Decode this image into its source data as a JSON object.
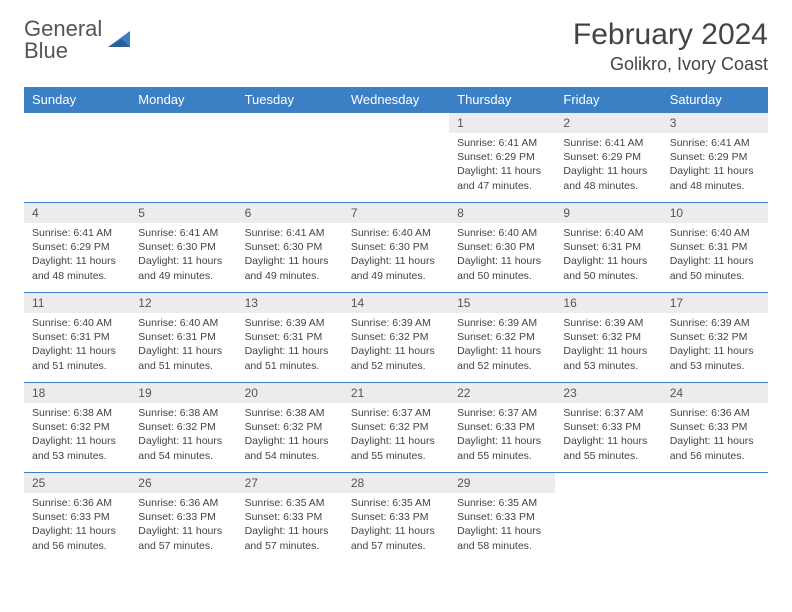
{
  "logo": {
    "line1": "General",
    "line2": "Blue"
  },
  "title": "February 2024",
  "location": "Golikro, Ivory Coast",
  "colors": {
    "header_bg": "#3b7fc4",
    "header_text": "#ffffff",
    "daynum_bg": "#ececec",
    "text": "#444444",
    "row_border": "#3b7fc4",
    "page_bg": "#ffffff"
  },
  "typography": {
    "title_fontsize": 30,
    "location_fontsize": 18,
    "dayheader_fontsize": 13,
    "daynum_fontsize": 12,
    "content_fontsize": 10.5
  },
  "day_headers": [
    "Sunday",
    "Monday",
    "Tuesday",
    "Wednesday",
    "Thursday",
    "Friday",
    "Saturday"
  ],
  "weeks": [
    [
      null,
      null,
      null,
      null,
      {
        "n": "1",
        "sr": "6:41 AM",
        "ss": "6:29 PM",
        "dl": "11 hours and 47 minutes."
      },
      {
        "n": "2",
        "sr": "6:41 AM",
        "ss": "6:29 PM",
        "dl": "11 hours and 48 minutes."
      },
      {
        "n": "3",
        "sr": "6:41 AM",
        "ss": "6:29 PM",
        "dl": "11 hours and 48 minutes."
      }
    ],
    [
      {
        "n": "4",
        "sr": "6:41 AM",
        "ss": "6:29 PM",
        "dl": "11 hours and 48 minutes."
      },
      {
        "n": "5",
        "sr": "6:41 AM",
        "ss": "6:30 PM",
        "dl": "11 hours and 49 minutes."
      },
      {
        "n": "6",
        "sr": "6:41 AM",
        "ss": "6:30 PM",
        "dl": "11 hours and 49 minutes."
      },
      {
        "n": "7",
        "sr": "6:40 AM",
        "ss": "6:30 PM",
        "dl": "11 hours and 49 minutes."
      },
      {
        "n": "8",
        "sr": "6:40 AM",
        "ss": "6:30 PM",
        "dl": "11 hours and 50 minutes."
      },
      {
        "n": "9",
        "sr": "6:40 AM",
        "ss": "6:31 PM",
        "dl": "11 hours and 50 minutes."
      },
      {
        "n": "10",
        "sr": "6:40 AM",
        "ss": "6:31 PM",
        "dl": "11 hours and 50 minutes."
      }
    ],
    [
      {
        "n": "11",
        "sr": "6:40 AM",
        "ss": "6:31 PM",
        "dl": "11 hours and 51 minutes."
      },
      {
        "n": "12",
        "sr": "6:40 AM",
        "ss": "6:31 PM",
        "dl": "11 hours and 51 minutes."
      },
      {
        "n": "13",
        "sr": "6:39 AM",
        "ss": "6:31 PM",
        "dl": "11 hours and 51 minutes."
      },
      {
        "n": "14",
        "sr": "6:39 AM",
        "ss": "6:32 PM",
        "dl": "11 hours and 52 minutes."
      },
      {
        "n": "15",
        "sr": "6:39 AM",
        "ss": "6:32 PM",
        "dl": "11 hours and 52 minutes."
      },
      {
        "n": "16",
        "sr": "6:39 AM",
        "ss": "6:32 PM",
        "dl": "11 hours and 53 minutes."
      },
      {
        "n": "17",
        "sr": "6:39 AM",
        "ss": "6:32 PM",
        "dl": "11 hours and 53 minutes."
      }
    ],
    [
      {
        "n": "18",
        "sr": "6:38 AM",
        "ss": "6:32 PM",
        "dl": "11 hours and 53 minutes."
      },
      {
        "n": "19",
        "sr": "6:38 AM",
        "ss": "6:32 PM",
        "dl": "11 hours and 54 minutes."
      },
      {
        "n": "20",
        "sr": "6:38 AM",
        "ss": "6:32 PM",
        "dl": "11 hours and 54 minutes."
      },
      {
        "n": "21",
        "sr": "6:37 AM",
        "ss": "6:32 PM",
        "dl": "11 hours and 55 minutes."
      },
      {
        "n": "22",
        "sr": "6:37 AM",
        "ss": "6:33 PM",
        "dl": "11 hours and 55 minutes."
      },
      {
        "n": "23",
        "sr": "6:37 AM",
        "ss": "6:33 PM",
        "dl": "11 hours and 55 minutes."
      },
      {
        "n": "24",
        "sr": "6:36 AM",
        "ss": "6:33 PM",
        "dl": "11 hours and 56 minutes."
      }
    ],
    [
      {
        "n": "25",
        "sr": "6:36 AM",
        "ss": "6:33 PM",
        "dl": "11 hours and 56 minutes."
      },
      {
        "n": "26",
        "sr": "6:36 AM",
        "ss": "6:33 PM",
        "dl": "11 hours and 57 minutes."
      },
      {
        "n": "27",
        "sr": "6:35 AM",
        "ss": "6:33 PM",
        "dl": "11 hours and 57 minutes."
      },
      {
        "n": "28",
        "sr": "6:35 AM",
        "ss": "6:33 PM",
        "dl": "11 hours and 57 minutes."
      },
      {
        "n": "29",
        "sr": "6:35 AM",
        "ss": "6:33 PM",
        "dl": "11 hours and 58 minutes."
      },
      null,
      null
    ]
  ],
  "labels": {
    "sunrise": "Sunrise:",
    "sunset": "Sunset:",
    "daylight": "Daylight:"
  }
}
